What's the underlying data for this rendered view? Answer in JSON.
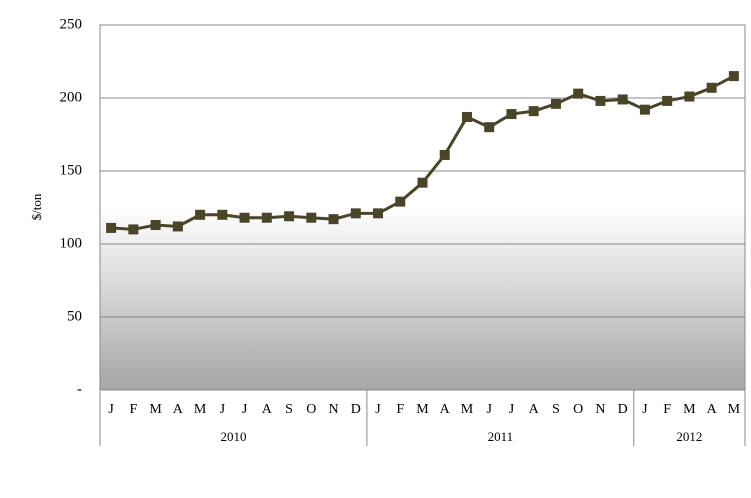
{
  "chart_data": {
    "type": "line",
    "y_label": "$/ton",
    "categories": [
      "J",
      "F",
      "M",
      "A",
      "M",
      "J",
      "J",
      "A",
      "S",
      "O",
      "N",
      "D",
      "J",
      "F",
      "M",
      "A",
      "M",
      "J",
      "J",
      "A",
      "S",
      "O",
      "N",
      "D",
      "J",
      "F",
      "M",
      "A",
      "M"
    ],
    "category_years": [
      "2010",
      "2010",
      "2010",
      "2010",
      "2010",
      "2010",
      "2010",
      "2010",
      "2010",
      "2010",
      "2010",
      "2010",
      "2011",
      "2011",
      "2011",
      "2011",
      "2011",
      "2011",
      "2011",
      "2011",
      "2011",
      "2011",
      "2011",
      "2011",
      "2012",
      "2012",
      "2012",
      "2012",
      "2012"
    ],
    "series": [
      {
        "color": "#4a4526",
        "values": [
          111,
          110,
          113,
          112,
          120,
          120,
          118,
          118,
          119,
          118,
          117,
          121,
          121,
          129,
          142,
          161,
          187,
          180,
          189,
          191,
          196,
          203,
          198,
          199,
          192,
          198,
          201,
          207,
          215
        ]
      }
    ],
    "ylim": [
      0,
      250
    ],
    "yticks": [
      {
        "value": 0,
        "label": "-"
      },
      50,
      100,
      150,
      200,
      250
    ],
    "grid": true
  }
}
